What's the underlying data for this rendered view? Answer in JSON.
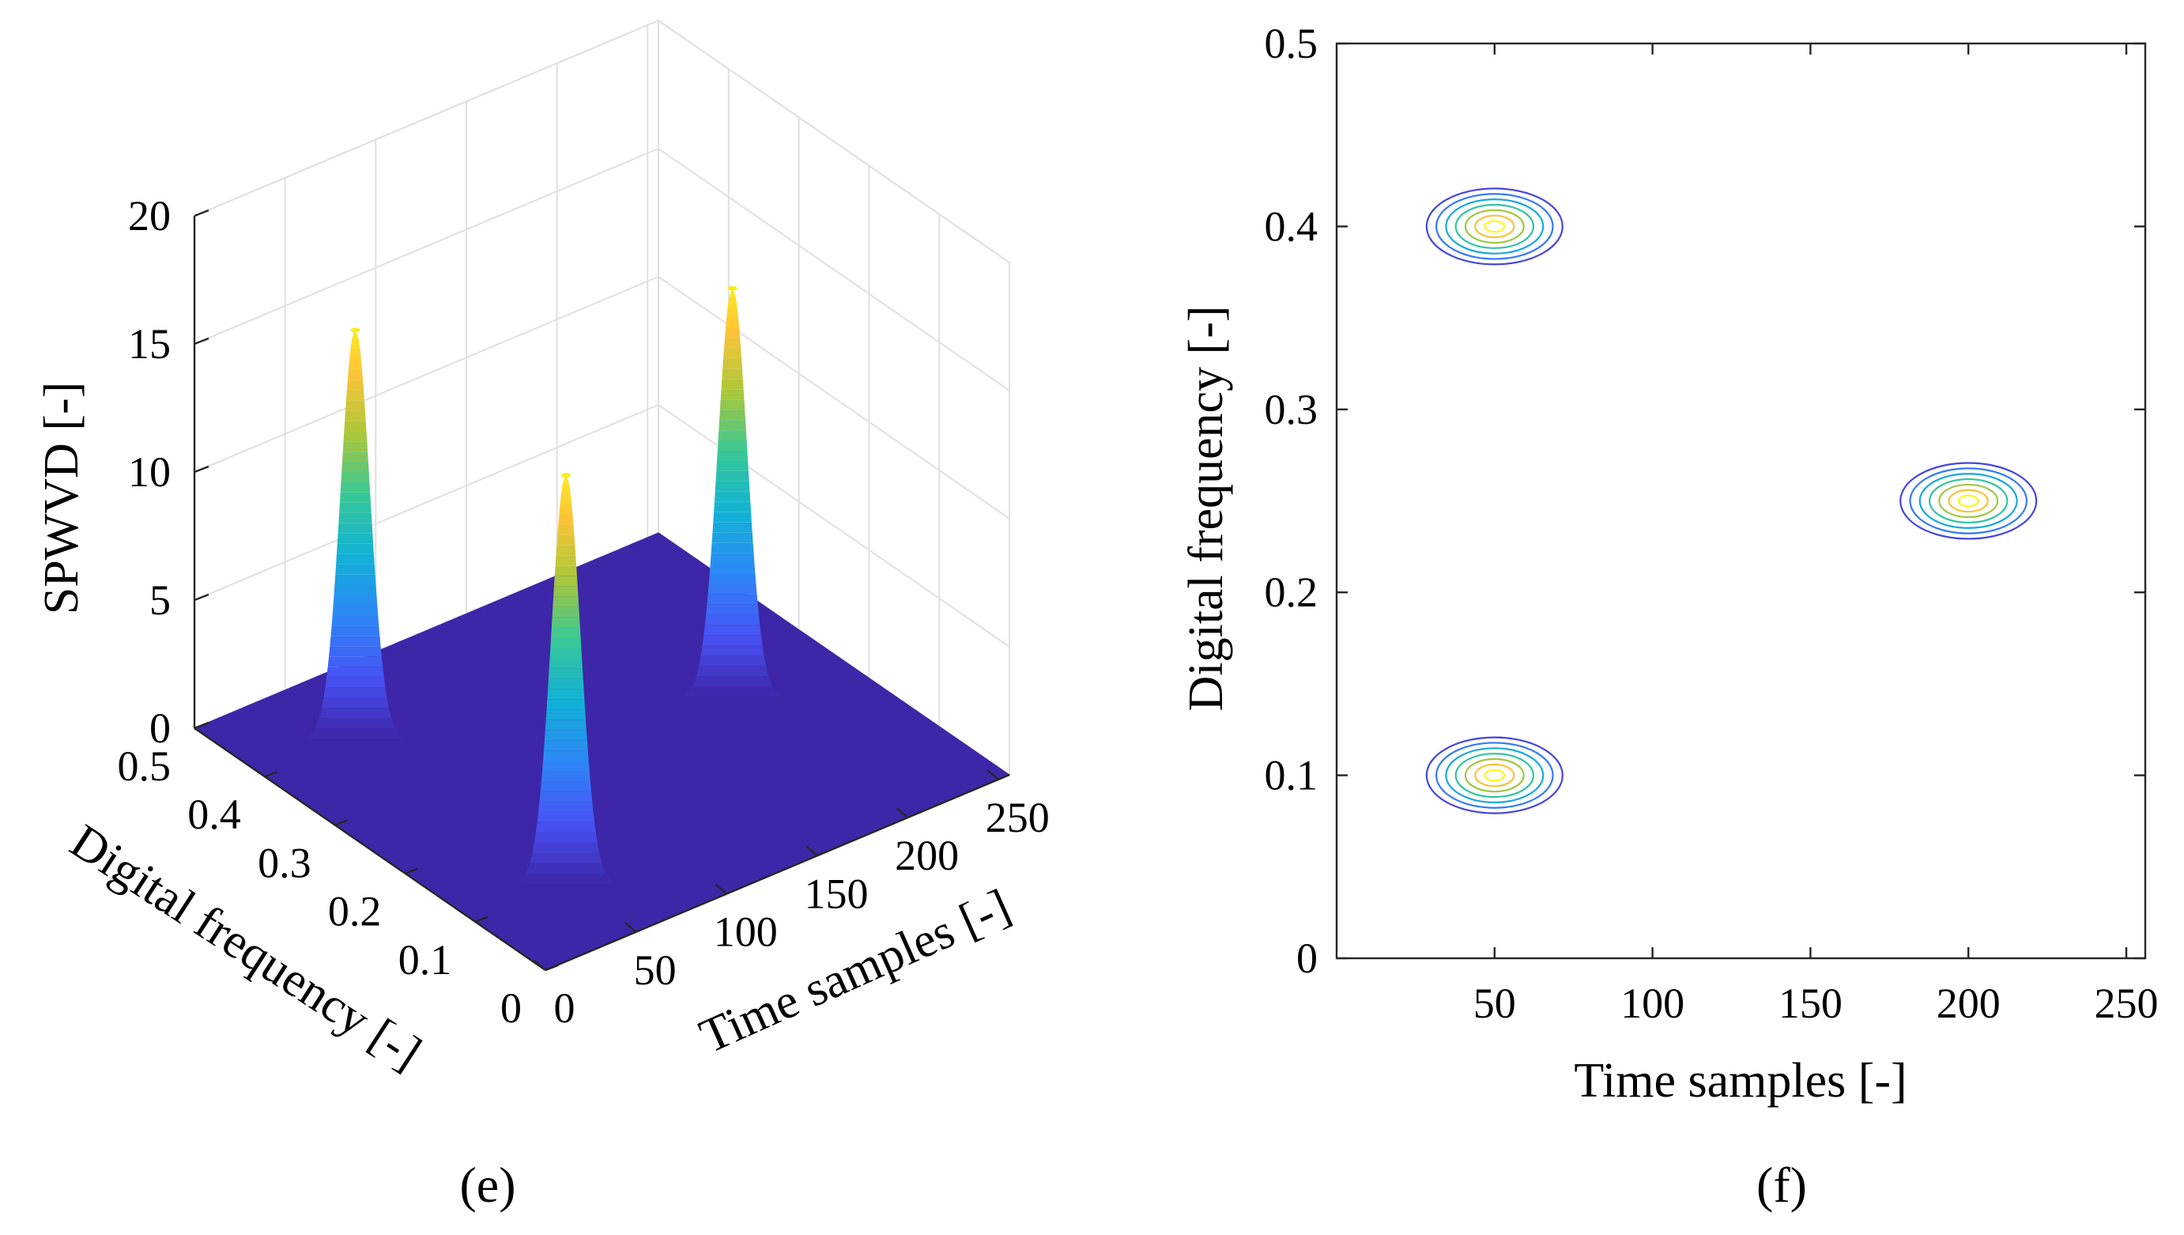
{
  "chart_data": [
    {
      "id": "e",
      "type": "surface3d",
      "panel_label": "(e)",
      "zlabel": "SPWVD [-]",
      "xlabel": "Time samples [-]",
      "ylabel": "Digital frequency [-]",
      "xlim": [
        0,
        256
      ],
      "ylim": [
        0,
        0.5
      ],
      "zlim": [
        0,
        20
      ],
      "x_ticks": [
        0,
        50,
        100,
        150,
        200,
        250
      ],
      "y_ticks": [
        0,
        0.1,
        0.2,
        0.3,
        0.4,
        0.5
      ],
      "z_ticks": [
        0,
        5,
        10,
        15,
        20
      ],
      "peaks": [
        {
          "time": 50,
          "freq": 0.4,
          "height": 16
        },
        {
          "time": 50,
          "freq": 0.1,
          "height": 16
        },
        {
          "time": 200,
          "freq": 0.25,
          "height": 16
        }
      ]
    },
    {
      "id": "f",
      "type": "contour",
      "panel_label": "(f)",
      "xlabel": "Time samples [-]",
      "ylabel": "Digital frequency [-]",
      "xlim": [
        0,
        256
      ],
      "ylim": [
        0,
        0.5
      ],
      "x_ticks": [
        50,
        100,
        150,
        200,
        250
      ],
      "y_ticks": [
        0,
        0.1,
        0.2,
        0.3,
        0.4,
        0.5
      ],
      "centers": [
        {
          "time": 50,
          "freq": 0.4
        },
        {
          "time": 50,
          "freq": 0.1
        },
        {
          "time": 200,
          "freq": 0.25
        }
      ],
      "levels": 7
    }
  ]
}
